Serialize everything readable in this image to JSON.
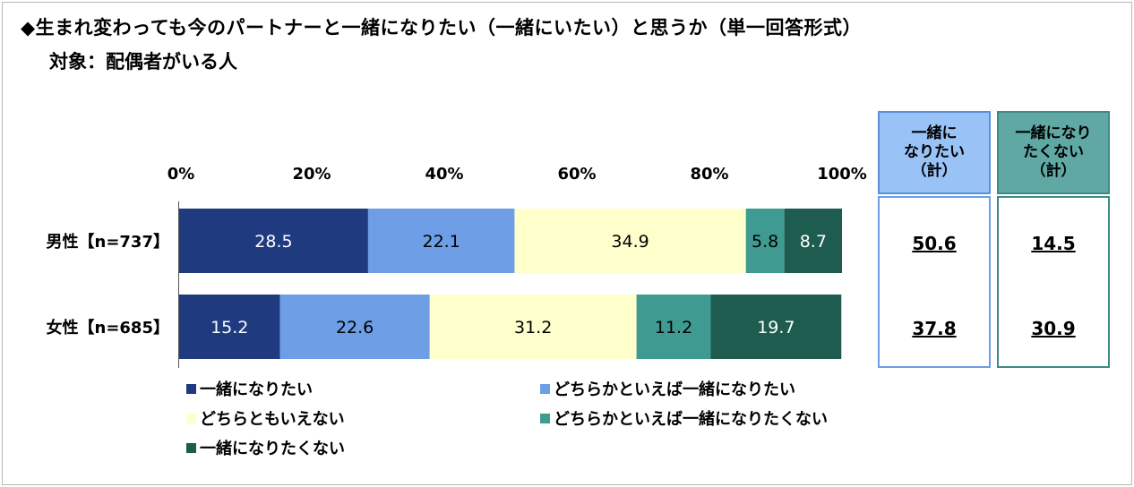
{
  "title": "◆生まれ変わっても今のパートナーと一緒になりたい（一緒にいたい）と思うか（単一回答形式）",
  "subtitle": "対象：配偶者がいる人",
  "colors": {
    "series1": "#1f3a7f",
    "series2": "#6d9ee6",
    "series3": "#ffffcc",
    "series4": "#3f9b91",
    "series5": "#1d5c4f"
  },
  "chart_data": {
    "type": "bar",
    "orientation": "horizontal",
    "stacked": true,
    "x_ticks": [
      "0%",
      "20%",
      "40%",
      "60%",
      "80%",
      "100%"
    ],
    "xlim": [
      0,
      100
    ],
    "categories": [
      "男性【n=737】",
      "女性【n=685】"
    ],
    "series": [
      {
        "name": "一緒になりたい",
        "values": [
          28.5,
          15.2
        ]
      },
      {
        "name": "どちらかといえば一緒になりたい",
        "values": [
          22.1,
          22.6
        ]
      },
      {
        "name": "どちらともいえない",
        "values": [
          34.9,
          31.2
        ]
      },
      {
        "name": "どちらかといえば一緒になりたくない",
        "values": [
          5.8,
          11.2
        ]
      },
      {
        "name": "一緒になりたくない",
        "values": [
          8.7,
          19.7
        ]
      }
    ],
    "legend": "bottom"
  },
  "summary": {
    "want": {
      "header": "一緒に\nなりたい\n（計）",
      "values": [
        "50.6",
        "37.8"
      ]
    },
    "not_want": {
      "header": "一緒になり\nたくない\n（計）",
      "values": [
        "14.5",
        "30.9"
      ]
    }
  }
}
